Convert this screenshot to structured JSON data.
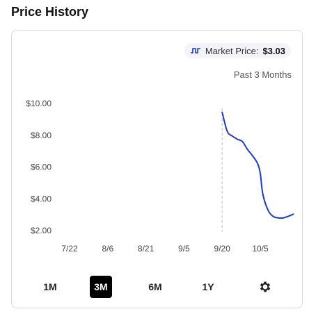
{
  "header": {
    "title": "Price History"
  },
  "market": {
    "label": "Market Price:",
    "price": "$3.03",
    "icon": "market-price-icon"
  },
  "range_label": "Past 3 Months",
  "buttons": [
    {
      "label": "1M",
      "active": false
    },
    {
      "label": "3M",
      "active": true
    },
    {
      "label": "6M",
      "active": false
    },
    {
      "label": "1Y",
      "active": false
    }
  ],
  "settings_icon": "gear-icon",
  "colors": {
    "line": "#1a3bd1",
    "active_button": "#000000",
    "marker": "#c8c8c8"
  },
  "chart_data": {
    "type": "line",
    "x_tick_labels": [
      "7/22",
      "8/6",
      "8/21",
      "9/5",
      "9/20",
      "10/5"
    ],
    "y_tick_labels": [
      "$10.00",
      "$8.00",
      "$6.00",
      "$4.00",
      "$2.00"
    ],
    "ylim": [
      2,
      10
    ],
    "grid": false,
    "marker_at": "9/20",
    "series": [
      {
        "x": [
          "9/20",
          "9/22",
          "9/24",
          "9/26",
          "9/28",
          "9/30",
          "10/2",
          "10/4",
          "10/5",
          "10/6",
          "10/8",
          "10/10",
          "10/12",
          "10/14",
          "10/16",
          "10/18"
        ],
        "values": [
          9.45,
          8.25,
          7.95,
          7.75,
          7.6,
          7.1,
          6.7,
          6.2,
          5.6,
          4.3,
          3.3,
          2.9,
          2.8,
          2.8,
          2.9,
          3.03
        ]
      }
    ]
  }
}
